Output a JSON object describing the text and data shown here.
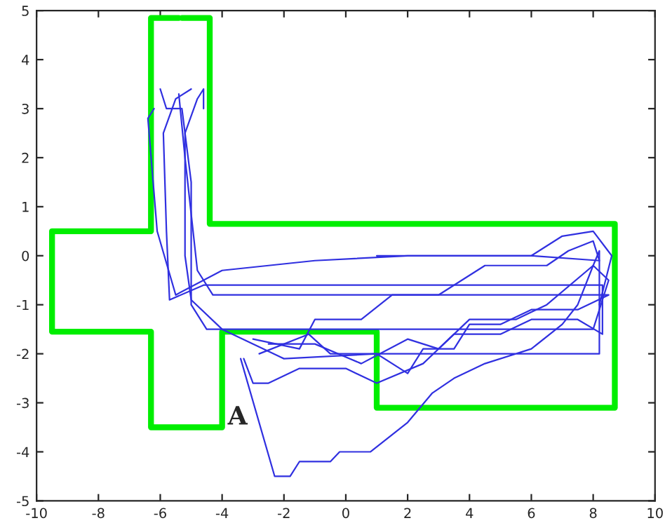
{
  "chart_data": {
    "type": "line",
    "xlim": [
      -10,
      10
    ],
    "ylim": [
      -5,
      5
    ],
    "xticks": [
      -10,
      -8,
      -6,
      -4,
      -2,
      0,
      2,
      4,
      6,
      8,
      10
    ],
    "yticks": [
      -5,
      -4,
      -3,
      -2,
      -1,
      0,
      1,
      2,
      3,
      4,
      5
    ],
    "grid": false,
    "legend": false,
    "marker": "none",
    "line_style": "solid",
    "annotations": [
      "A"
    ],
    "series": [
      {
        "color": "#00ee00",
        "x": [
          -5.3,
          -4.4,
          -4.4,
          8.7,
          8.7,
          1.0,
          1.0,
          -4.0,
          -4.0,
          -6.3,
          -6.3,
          -9.5,
          -9.5,
          -6.3,
          -6.3,
          -5.4
        ],
        "values": [
          4.85,
          4.85,
          0.65,
          0.65,
          -3.1,
          -3.1,
          -1.55,
          -1.55,
          -3.5,
          -3.5,
          -1.55,
          -1.55,
          0.5,
          0.5,
          4.85,
          4.85
        ]
      },
      {
        "color": "#3030e0",
        "x": [
          -3.4,
          -2.3,
          -1.8,
          -1.5,
          -0.5,
          -0.2,
          0.8,
          2.0,
          2.8,
          3.5,
          4.5,
          6.0,
          7.0,
          7.5,
          8.0,
          8.2,
          8.2,
          7.0,
          4.0,
          1.0,
          -2.0,
          -4.0,
          -5.0,
          -5.2,
          -5.2,
          -4.8,
          -4.6,
          -4.6
        ],
        "values": [
          -2.1,
          -4.5,
          -4.5,
          -4.2,
          -4.2,
          -4.0,
          -4.0,
          -3.4,
          -2.8,
          -2.5,
          -2.2,
          -1.9,
          -1.4,
          -1.0,
          -0.2,
          0.1,
          -2.0,
          -2.0,
          -2.0,
          -2.0,
          -2.1,
          -1.5,
          -0.9,
          0.0,
          2.5,
          3.2,
          3.4,
          3.0
        ]
      },
      {
        "color": "#3030e0",
        "x": [
          -3.3,
          -3.0,
          -2.5,
          -1.5,
          0.0,
          1.0,
          2.5,
          3.5,
          5.0,
          6.0,
          7.5,
          8.3,
          8.3,
          6.0,
          3.0,
          0.0,
          -3.0,
          -4.6,
          -5.7,
          -5.8,
          -5.9,
          -5.5,
          -5.0
        ],
        "values": [
          -2.1,
          -2.6,
          -2.6,
          -2.3,
          -2.3,
          -2.6,
          -2.2,
          -1.6,
          -1.6,
          -1.3,
          -1.3,
          -1.6,
          -0.6,
          -0.6,
          -0.6,
          -0.6,
          -0.6,
          -0.6,
          -0.9,
          0.5,
          2.5,
          3.2,
          3.4
        ]
      },
      {
        "color": "#3030e0",
        "x": [
          -2.5,
          -1.0,
          0.5,
          2.0,
          3.0,
          4.0,
          5.5,
          6.5,
          8.0,
          8.5,
          8.0,
          5.0,
          2.0,
          -1.0,
          -4.5,
          -5.0,
          -5.0,
          -5.3,
          -5.8,
          -6.0
        ],
        "values": [
          -1.8,
          -1.8,
          -2.2,
          -1.7,
          -1.9,
          -1.3,
          -1.3,
          -1.0,
          -0.2,
          -0.5,
          -1.5,
          -1.5,
          -1.5,
          -1.5,
          -1.5,
          -1.0,
          1.5,
          3.0,
          3.0,
          3.4
        ]
      },
      {
        "color": "#3030e0",
        "x": [
          -3.0,
          -1.5,
          -1.0,
          0.5,
          1.5,
          3.0,
          4.5,
          6.5,
          7.2,
          8.0,
          8.2,
          6.0,
          2.0,
          -1.0,
          -4.0,
          -5.5,
          -6.1,
          -6.4,
          -6.2
        ],
        "values": [
          -1.7,
          -1.9,
          -1.3,
          -1.3,
          -0.8,
          -0.8,
          -0.2,
          -0.2,
          0.1,
          0.3,
          -0.1,
          0.0,
          0.0,
          -0.1,
          -0.3,
          -0.8,
          0.5,
          2.8,
          3.0
        ]
      },
      {
        "color": "#3030e0",
        "x": [
          -2.8,
          -1.2,
          -0.5,
          1.0,
          2.0,
          2.5,
          3.5,
          4.0,
          5.0,
          6.0,
          7.5,
          8.5,
          8.0,
          5.0,
          1.0,
          -2.0,
          -4.3,
          -4.8,
          -5.2,
          -5.4
        ],
        "values": [
          -2.0,
          -1.6,
          -2.0,
          -2.0,
          -2.4,
          -1.9,
          -1.9,
          -1.4,
          -1.4,
          -1.1,
          -1.1,
          -0.8,
          -0.8,
          -0.8,
          -0.8,
          -0.8,
          -0.8,
          -0.3,
          2.0,
          3.3
        ]
      },
      {
        "color": "#3030e0",
        "x": [
          1.0,
          3.0,
          6.0,
          7.0,
          8.0,
          8.6,
          8.2
        ],
        "values": [
          0.0,
          0.0,
          0.0,
          0.4,
          0.5,
          0.0,
          -1.0
        ]
      }
    ]
  }
}
